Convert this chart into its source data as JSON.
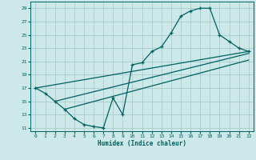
{
  "xlabel": "Humidex (Indice chaleur)",
  "bg_color": "#cce8e8",
  "grid_color": "#aacccc",
  "line_color": "#006060",
  "xlim": [
    -0.5,
    22.5
  ],
  "ylim": [
    10.5,
    30
  ],
  "xticks": [
    0,
    1,
    2,
    3,
    4,
    5,
    6,
    7,
    8,
    9,
    10,
    11,
    12,
    13,
    14,
    15,
    16,
    17,
    18,
    19,
    20,
    21,
    22
  ],
  "yticks": [
    11,
    13,
    15,
    17,
    19,
    21,
    23,
    25,
    27,
    29
  ],
  "line1_x": [
    0,
    1,
    2,
    3,
    4,
    5,
    6,
    7,
    8,
    9,
    10,
    11,
    12,
    13,
    14,
    15,
    16,
    17,
    18,
    19,
    20,
    21,
    22
  ],
  "line1_y": [
    17,
    16.2,
    15,
    13.8,
    12.4,
    11.5,
    11.2,
    11,
    15.5,
    13,
    20.5,
    20.8,
    22.5,
    23.2,
    25.3,
    27.8,
    28.6,
    29,
    29,
    25,
    24,
    23,
    22.5
  ],
  "line2_x": [
    0,
    22
  ],
  "line2_y": [
    17.0,
    22.5
  ],
  "line3_x": [
    2,
    22
  ],
  "line3_y": [
    15.0,
    22.2
  ],
  "line4_x": [
    3,
    22
  ],
  "line4_y": [
    13.8,
    21.2
  ]
}
